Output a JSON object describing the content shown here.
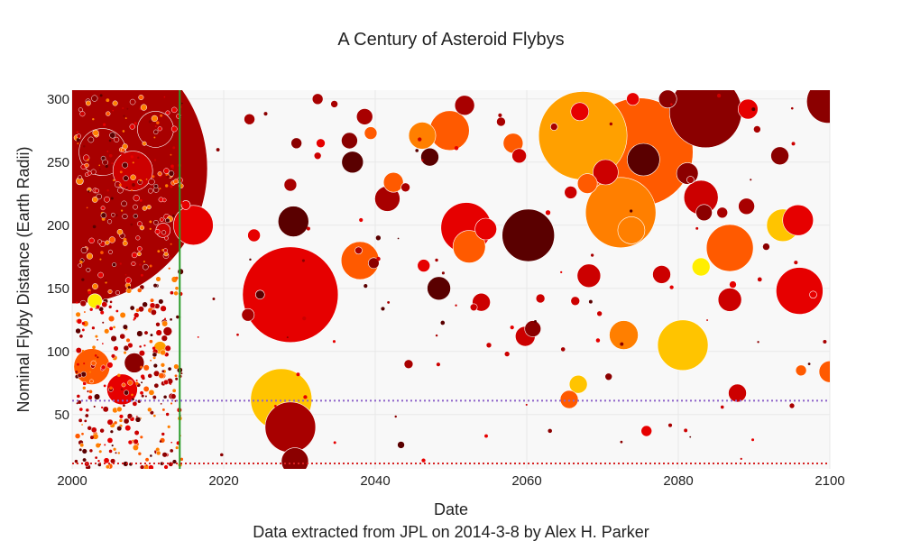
{
  "chart_data": {
    "type": "scatter",
    "title": "A Century of Asteroid Flybys",
    "xlabel": "Date",
    "ylabel": "Nominal Flyby Distance (Earth Radii)",
    "source_note": "Data extracted from JPL on 2014-3-8 by Alex H. Parker",
    "xlim": [
      2000,
      2100
    ],
    "ylim": [
      7,
      307
    ],
    "xticks": [
      "2000",
      "2020",
      "2040",
      "2060",
      "2080",
      "2100"
    ],
    "yticks": [
      "50",
      "100",
      "150",
      "200",
      "250",
      "300"
    ],
    "grid": true,
    "colors": {
      "plot_bg": "#f8f8f8",
      "grid": "#e8e8e8",
      "now_line": "#2a9d2a",
      "moon_line": "#8d63c9",
      "geo_line": "#d62222",
      "palette": [
        "#5a0000",
        "#8b0000",
        "#a80000",
        "#cc0000",
        "#e60000",
        "#ff5a00",
        "#ff7f00",
        "#ffa000",
        "#ffc400",
        "#ffee00"
      ]
    },
    "reference_lines": [
      {
        "type": "vertical",
        "x": 2014.2,
        "color": "#2a9d2a"
      },
      {
        "type": "horizontal",
        "y": 61,
        "color": "#8d63c9",
        "style": "dotted"
      },
      {
        "type": "horizontal",
        "y": 7,
        "color": "#d62222",
        "style": "dotted"
      }
    ],
    "points": [
      {
        "x": 2004,
        "y": 258,
        "r": 26,
        "c": "#a80000"
      },
      {
        "x": 2008,
        "y": 243,
        "r": 22,
        "c": "#cc0000"
      },
      {
        "x": 2011,
        "y": 276,
        "r": 20,
        "c": "#a80000"
      },
      {
        "x": 2001,
        "y": 235,
        "r": 4,
        "c": "#ff7f00"
      },
      {
        "x": 2012,
        "y": 196,
        "r": 8,
        "c": "#cc0000"
      },
      {
        "x": 2015,
        "y": 216,
        "r": 5,
        "c": "#e60000"
      },
      {
        "x": 2016,
        "y": 200,
        "r": 22,
        "c": "#e60000"
      },
      {
        "x": 2003,
        "y": 140,
        "r": 8,
        "c": "#ffee00"
      },
      {
        "x": 2002.6,
        "y": 88,
        "r": 20,
        "c": "#ff5a00"
      },
      {
        "x": 2006.6,
        "y": 70,
        "r": 17,
        "c": "#e60000"
      },
      {
        "x": 2008.2,
        "y": 91,
        "r": 11,
        "c": "#8b0000"
      },
      {
        "x": 2011.6,
        "y": 103,
        "r": 7,
        "c": "#ffa000"
      },
      {
        "x": 2012.6,
        "y": 116,
        "r": 5,
        "c": "#a80000"
      },
      {
        "x": 2023.2,
        "y": 129,
        "r": 7,
        "c": "#a80000"
      },
      {
        "x": 2024.8,
        "y": 145,
        "r": 5,
        "c": "#5a0000"
      },
      {
        "x": 2028.8,
        "y": 145,
        "r": 53,
        "c": "#e60000"
      },
      {
        "x": 2027.6,
        "y": 62,
        "r": 34,
        "c": "#ffc400"
      },
      {
        "x": 2028.8,
        "y": 40,
        "r": 28,
        "c": "#a80000"
      },
      {
        "x": 2029.4,
        "y": 13,
        "r": 15,
        "c": "#8b0000"
      },
      {
        "x": 2024.0,
        "y": 192,
        "r": 7,
        "c": "#e60000"
      },
      {
        "x": 2029.2,
        "y": 203,
        "r": 17,
        "c": "#5a0000"
      },
      {
        "x": 2029.6,
        "y": 265,
        "r": 6,
        "c": "#8b0000"
      },
      {
        "x": 2028.8,
        "y": 232,
        "r": 7,
        "c": "#a80000"
      },
      {
        "x": 2023.4,
        "y": 284,
        "r": 6,
        "c": "#a80000"
      },
      {
        "x": 2032.8,
        "y": 265,
        "r": 5,
        "c": "#e60000"
      },
      {
        "x": 2032.4,
        "y": 255,
        "r": 4,
        "c": "#cc0000"
      },
      {
        "x": 2036.6,
        "y": 267,
        "r": 9,
        "c": "#8b0000"
      },
      {
        "x": 2037.0,
        "y": 250,
        "r": 12,
        "c": "#5a0000"
      },
      {
        "x": 2038.6,
        "y": 286,
        "r": 9,
        "c": "#a80000"
      },
      {
        "x": 2039.4,
        "y": 273,
        "r": 7,
        "c": "#ff5a00"
      },
      {
        "x": 2038.0,
        "y": 172,
        "r": 21,
        "c": "#ff5a00"
      },
      {
        "x": 2039.8,
        "y": 170,
        "r": 6,
        "c": "#8b0000"
      },
      {
        "x": 2041.6,
        "y": 221,
        "r": 14,
        "c": "#a80000"
      },
      {
        "x": 2042.4,
        "y": 234,
        "r": 11,
        "c": "#ff5a00"
      },
      {
        "x": 2046.2,
        "y": 271,
        "r": 15,
        "c": "#ff7f00"
      },
      {
        "x": 2047.2,
        "y": 254,
        "r": 10,
        "c": "#5a0000"
      },
      {
        "x": 2049.8,
        "y": 275,
        "r": 22,
        "c": "#ff5a00"
      },
      {
        "x": 2051.8,
        "y": 295,
        "r": 11,
        "c": "#a80000"
      },
      {
        "x": 2046.4,
        "y": 168,
        "r": 7,
        "c": "#e60000"
      },
      {
        "x": 2048.4,
        "y": 150,
        "r": 13,
        "c": "#5a0000"
      },
      {
        "x": 2052.0,
        "y": 198,
        "r": 28,
        "c": "#e60000"
      },
      {
        "x": 2052.4,
        "y": 183,
        "r": 18,
        "c": "#ff5a00"
      },
      {
        "x": 2054.6,
        "y": 197,
        "r": 12,
        "c": "#e60000"
      },
      {
        "x": 2054.0,
        "y": 139,
        "r": 10,
        "c": "#cc0000"
      },
      {
        "x": 2058.2,
        "y": 265,
        "r": 11,
        "c": "#ff5a00"
      },
      {
        "x": 2059.0,
        "y": 255,
        "r": 8,
        "c": "#cc0000"
      },
      {
        "x": 2060.2,
        "y": 192,
        "r": 29,
        "c": "#5a0000"
      },
      {
        "x": 2059.8,
        "y": 112,
        "r": 11,
        "c": "#cc0000"
      },
      {
        "x": 2060.8,
        "y": 118,
        "r": 9,
        "c": "#8b0000"
      },
      {
        "x": 2061.8,
        "y": 142,
        "r": 5,
        "c": "#cc0000"
      },
      {
        "x": 2067.4,
        "y": 271,
        "r": 49,
        "c": "#ffa000"
      },
      {
        "x": 2074.8,
        "y": 258,
        "r": 60,
        "c": "#ff5a00"
      },
      {
        "x": 2083.6,
        "y": 290,
        "r": 40,
        "c": "#8b0000"
      },
      {
        "x": 2072.4,
        "y": 210,
        "r": 39,
        "c": "#ff7f00"
      },
      {
        "x": 2073.8,
        "y": 196,
        "r": 15,
        "c": "#ff7f00"
      },
      {
        "x": 2075.4,
        "y": 252,
        "r": 18,
        "c": "#5a0000"
      },
      {
        "x": 2070.4,
        "y": 242,
        "r": 14,
        "c": "#cc0000"
      },
      {
        "x": 2068.0,
        "y": 233,
        "r": 11,
        "c": "#ff5a00"
      },
      {
        "x": 2067.0,
        "y": 290,
        "r": 10,
        "c": "#e60000"
      },
      {
        "x": 2081.2,
        "y": 241,
        "r": 12,
        "c": "#8b0000"
      },
      {
        "x": 2083.0,
        "y": 222,
        "r": 19,
        "c": "#cc0000"
      },
      {
        "x": 2083.4,
        "y": 210,
        "r": 9,
        "c": "#8b0000"
      },
      {
        "x": 2086.8,
        "y": 182,
        "r": 26,
        "c": "#ff5a00"
      },
      {
        "x": 2089.2,
        "y": 292,
        "r": 11,
        "c": "#e60000"
      },
      {
        "x": 2089.0,
        "y": 215,
        "r": 9,
        "c": "#a80000"
      },
      {
        "x": 2083.0,
        "y": 167,
        "r": 10,
        "c": "#ffee00"
      },
      {
        "x": 2080.6,
        "y": 105,
        "r": 28,
        "c": "#ffc400"
      },
      {
        "x": 2077.8,
        "y": 161,
        "r": 10,
        "c": "#cc0000"
      },
      {
        "x": 2072.8,
        "y": 113,
        "r": 16,
        "c": "#ff7f00"
      },
      {
        "x": 2068.2,
        "y": 160,
        "r": 13,
        "c": "#cc0000"
      },
      {
        "x": 2066.8,
        "y": 74,
        "r": 10,
        "c": "#ffc400"
      },
      {
        "x": 2065.6,
        "y": 62,
        "r": 10,
        "c": "#ff5a00"
      },
      {
        "x": 2075.8,
        "y": 37,
        "r": 6,
        "c": "#e60000"
      },
      {
        "x": 2086.8,
        "y": 141,
        "r": 13,
        "c": "#cc0000"
      },
      {
        "x": 2087.8,
        "y": 67,
        "r": 10,
        "c": "#cc0000"
      },
      {
        "x": 2093.4,
        "y": 255,
        "r": 10,
        "c": "#8b0000"
      },
      {
        "x": 2095.8,
        "y": 204,
        "r": 17,
        "c": "#e60000"
      },
      {
        "x": 2093.8,
        "y": 200,
        "r": 18,
        "c": "#ffc400"
      },
      {
        "x": 2096.0,
        "y": 148,
        "r": 26,
        "c": "#e60000"
      },
      {
        "x": 2099.8,
        "y": 298,
        "r": 24,
        "c": "#8b0000"
      },
      {
        "x": 2100.0,
        "y": 84,
        "r": 12,
        "c": "#ff5a00"
      },
      {
        "x": 2096.2,
        "y": 85,
        "r": 6,
        "c": "#ff5a00"
      },
      {
        "x": 2070.8,
        "y": 80,
        "r": 4,
        "c": "#8b0000"
      },
      {
        "x": 2069.6,
        "y": 130,
        "r": 3,
        "c": "#cc0000"
      },
      {
        "x": 2065.8,
        "y": 226,
        "r": 7,
        "c": "#cc0000"
      },
      {
        "x": 2066.4,
        "y": 140,
        "r": 5,
        "c": "#cc0000"
      },
      {
        "x": 2074.0,
        "y": 300,
        "r": 7,
        "c": "#e60000"
      },
      {
        "x": 2078.6,
        "y": 300,
        "r": 10,
        "c": "#8b0000"
      },
      {
        "x": 2085.8,
        "y": 210,
        "r": 6,
        "c": "#a80000"
      },
      {
        "x": 2087.2,
        "y": 153,
        "r": 4,
        "c": "#e60000"
      },
      {
        "x": 2044.0,
        "y": 230,
        "r": 5,
        "c": "#a80000"
      },
      {
        "x": 2043.4,
        "y": 26,
        "r": 4,
        "c": "#5a0000"
      },
      {
        "x": 2044.4,
        "y": 90,
        "r": 5,
        "c": "#a80000"
      },
      {
        "x": 2053.0,
        "y": 135,
        "r": 4,
        "c": "#cc0000"
      },
      {
        "x": 2056.6,
        "y": 282,
        "r": 5,
        "c": "#a80000"
      },
      {
        "x": 2032.4,
        "y": 300,
        "r": 6,
        "c": "#a80000"
      },
      {
        "x": 2037.8,
        "y": 180,
        "r": 4,
        "c": "#a80000"
      },
      {
        "x": 2040.4,
        "y": 190,
        "r": 3,
        "c": "#5a0000"
      },
      {
        "x": 2055.0,
        "y": 105,
        "r": 3,
        "c": "#cc0000"
      },
      {
        "x": 2057.4,
        "y": 98,
        "r": 3,
        "c": "#cc0000"
      },
      {
        "x": 2063.6,
        "y": 278,
        "r": 4,
        "c": "#a80000"
      },
      {
        "x": 2090.4,
        "y": 276,
        "r": 4,
        "c": "#a80000"
      },
      {
        "x": 2091.6,
        "y": 183,
        "r": 4,
        "c": "#8b0000"
      },
      {
        "x": 2097.8,
        "y": 145,
        "r": 4,
        "c": "#e60000"
      },
      {
        "x": 2095.0,
        "y": 57,
        "r": 3,
        "c": "#a80000"
      },
      {
        "x": 2081.6,
        "y": 236,
        "r": 4,
        "c": "#a80000"
      },
      {
        "x": 2062.8,
        "y": 210,
        "r": 3,
        "c": "#e60000"
      },
      {
        "x": 2034.6,
        "y": 296,
        "r": 4,
        "c": "#a80000"
      }
    ]
  }
}
